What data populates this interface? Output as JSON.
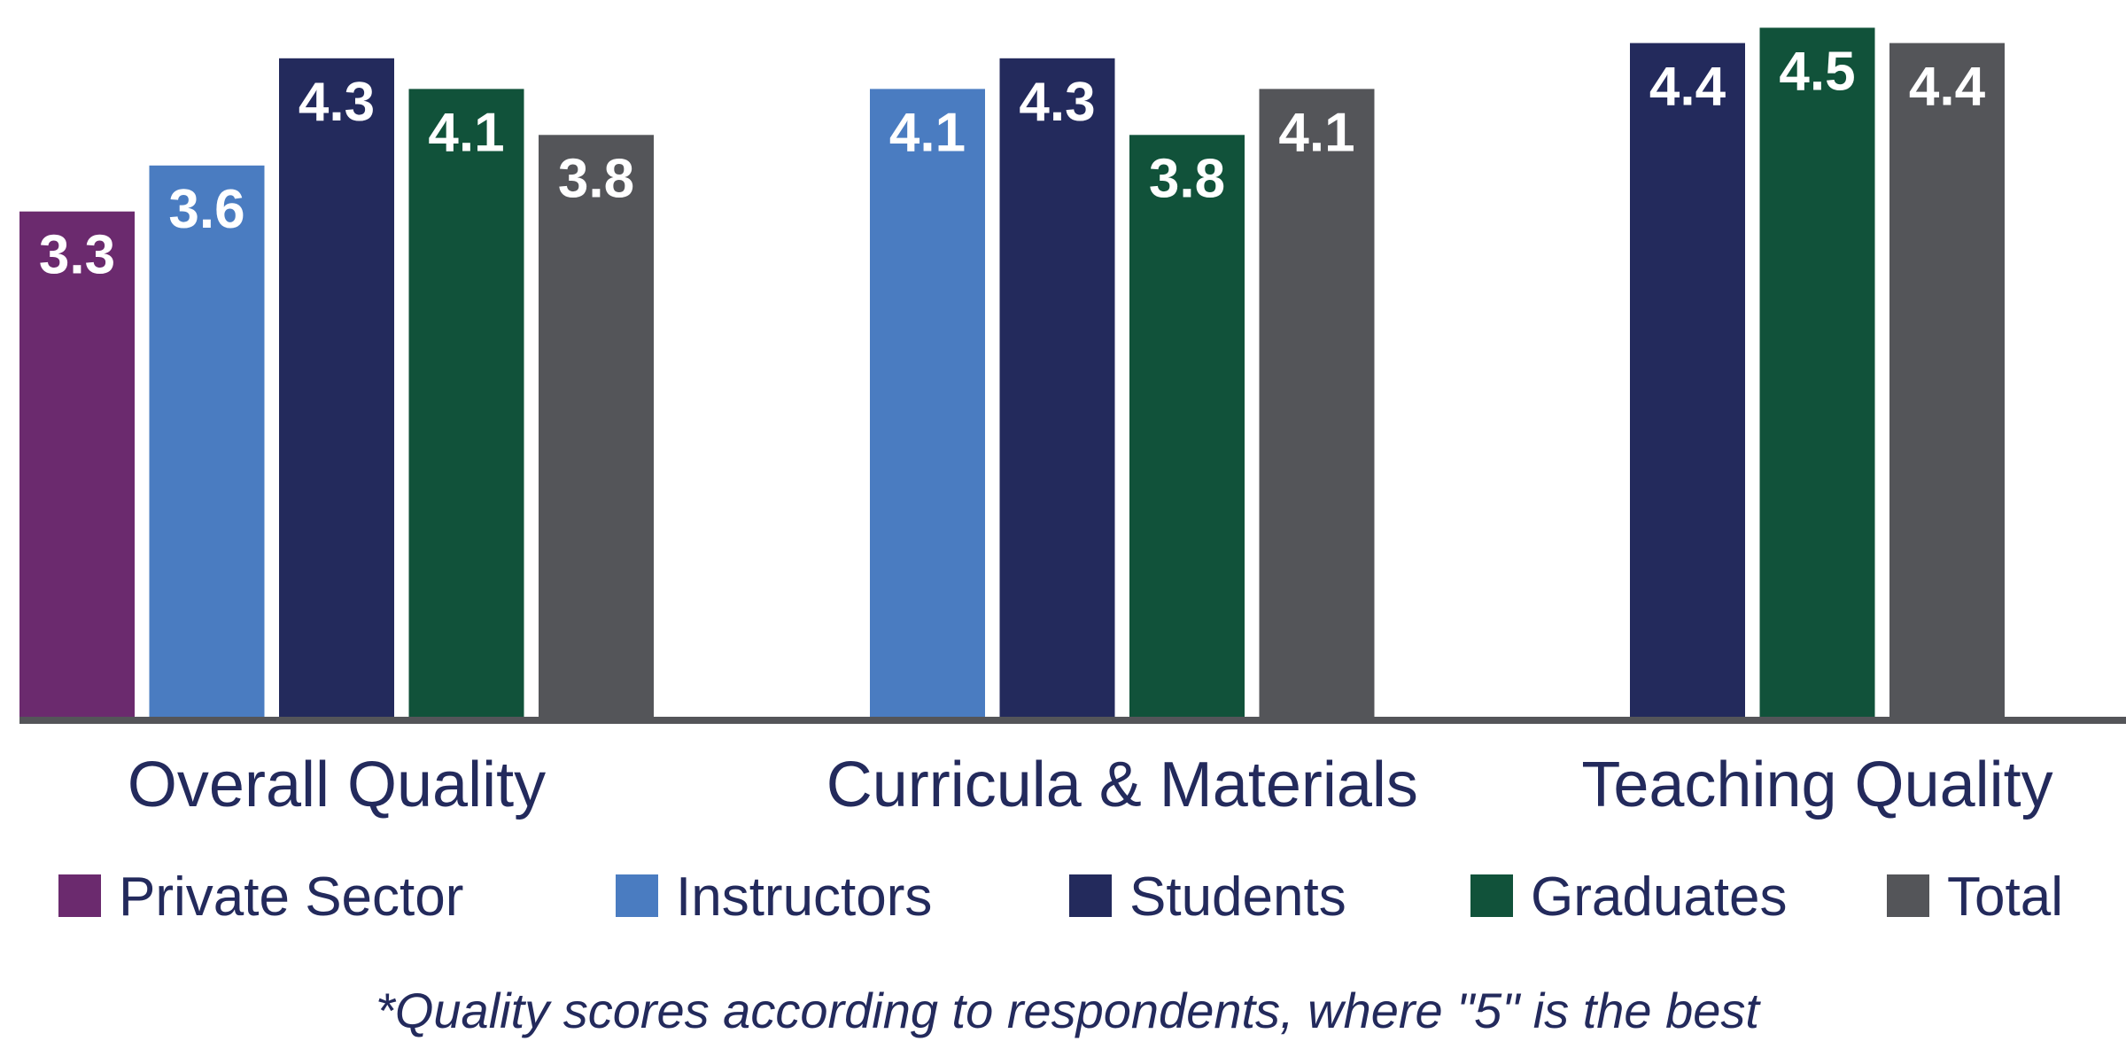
{
  "chart_data": {
    "type": "bar",
    "title": "",
    "xlabel": "",
    "ylabel": "",
    "ylim": [
      0,
      4.6
    ],
    "grid": false,
    "legend_position": "bottom",
    "categories": [
      "Overall Quality",
      "Curricula & Materials",
      "Teaching Quality"
    ],
    "series": [
      {
        "name": "Private Sector",
        "color": "#6b2a6e",
        "values": [
          3.3,
          null,
          null
        ]
      },
      {
        "name": "Instructors",
        "color": "#4a7cc1",
        "values": [
          3.6,
          4.1,
          null
        ]
      },
      {
        "name": "Students",
        "color": "#232a5c",
        "values": [
          4.3,
          4.3,
          4.4
        ]
      },
      {
        "name": "Graduates",
        "color": "#11523a",
        "values": [
          4.1,
          3.8,
          4.5
        ]
      },
      {
        "name": "Total",
        "color": "#545559",
        "values": [
          3.8,
          4.1,
          4.4
        ]
      }
    ],
    "footnote": "*Quality scores according to respondents, where \"5\" is the best"
  }
}
